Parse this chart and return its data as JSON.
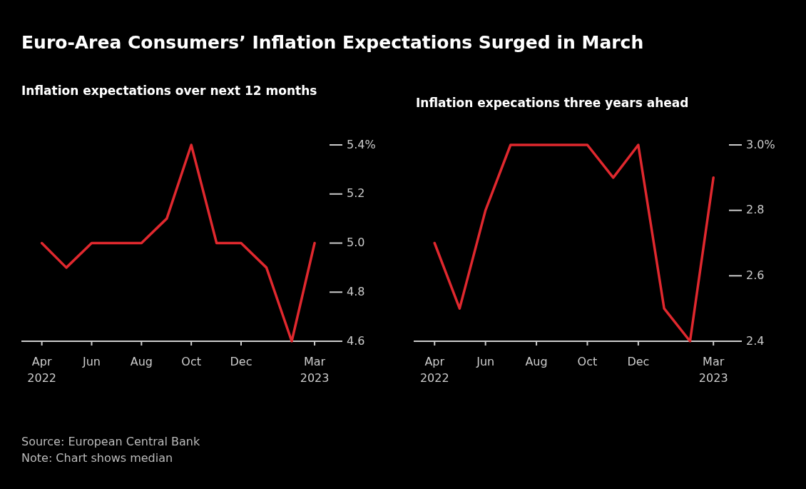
{
  "chart_data": [
    {
      "type": "line",
      "title": "Euro-Area Consumers’ Inflation Expectations Surged in March",
      "subtitle": "Inflation expectations over next 12 months",
      "x": [
        "2022-04",
        "2022-05",
        "2022-06",
        "2022-07",
        "2022-08",
        "2022-09",
        "2022-10",
        "2022-11",
        "2022-12",
        "2023-01",
        "2023-02",
        "2023-03"
      ],
      "series": [
        {
          "color": "#e0282e",
          "values": [
            5.0,
            4.9,
            5.0,
            5.0,
            5.0,
            5.1,
            5.4,
            5.0,
            5.0,
            4.9,
            4.6,
            5.0
          ]
        }
      ],
      "xlim": [
        "2022-03-07",
        "2023-04-04"
      ],
      "xticks": [
        {
          "value": "2022-04",
          "label": "Apr\n2022"
        },
        {
          "value": "2022-06",
          "label": "Jun"
        },
        {
          "value": "2022-08",
          "label": "Aug"
        },
        {
          "value": "2022-10",
          "label": "Oct"
        },
        {
          "value": "2022-12",
          "label": "Dec"
        },
        {
          "value": "2023-03",
          "label": "Mar\n2023"
        }
      ],
      "ylim": [
        4.6,
        5.4
      ],
      "yticks": [
        {
          "value": 4.6,
          "label": "4.6"
        },
        {
          "value": 4.8,
          "label": "4.8"
        },
        {
          "value": 5,
          "label": "5.0"
        },
        {
          "value": 5.2,
          "label": "5.2"
        },
        {
          "value": 5.4,
          "label": "5.4%"
        }
      ],
      "grid": false,
      "marker": "none",
      "line_style": "solid",
      "annotations": [
        "Source: European Central Bank",
        "Note: Chart shows median"
      ]
    },
    {
      "type": "line",
      "subtitle": "Inflation expecations three years ahead",
      "x": [
        "2022-04",
        "2022-05",
        "2022-06",
        "2022-07",
        "2022-08",
        "2022-09",
        "2022-10",
        "2022-11",
        "2022-12",
        "2023-01",
        "2023-02",
        "2023-03"
      ],
      "series": [
        {
          "color": "#e0282e",
          "values": [
            2.7,
            2.5,
            2.8,
            3.0,
            3.0,
            3.0,
            3.0,
            2.9,
            3.0,
            2.5,
            2.4,
            2.9
          ]
        }
      ],
      "xlim": [
        "2022-03-07",
        "2023-04-04"
      ],
      "xticks": [
        {
          "value": "2022-04",
          "label": "Apr\n2022"
        },
        {
          "value": "2022-06",
          "label": "Jun"
        },
        {
          "value": "2022-08",
          "label": "Aug"
        },
        {
          "value": "2022-10",
          "label": "Oct"
        },
        {
          "value": "2022-12",
          "label": "Dec"
        },
        {
          "value": "2023-03",
          "label": "Mar\n2023"
        }
      ],
      "ylim": [
        2.4,
        3.0
      ],
      "yticks": [
        {
          "value": 2.4,
          "label": "2.4"
        },
        {
          "value": 2.6,
          "label": "2.6"
        },
        {
          "value": 2.8,
          "label": "2.8"
        },
        {
          "value": 3,
          "label": "3.0%"
        }
      ],
      "grid": false,
      "marker": "none",
      "line_style": "solid"
    }
  ]
}
